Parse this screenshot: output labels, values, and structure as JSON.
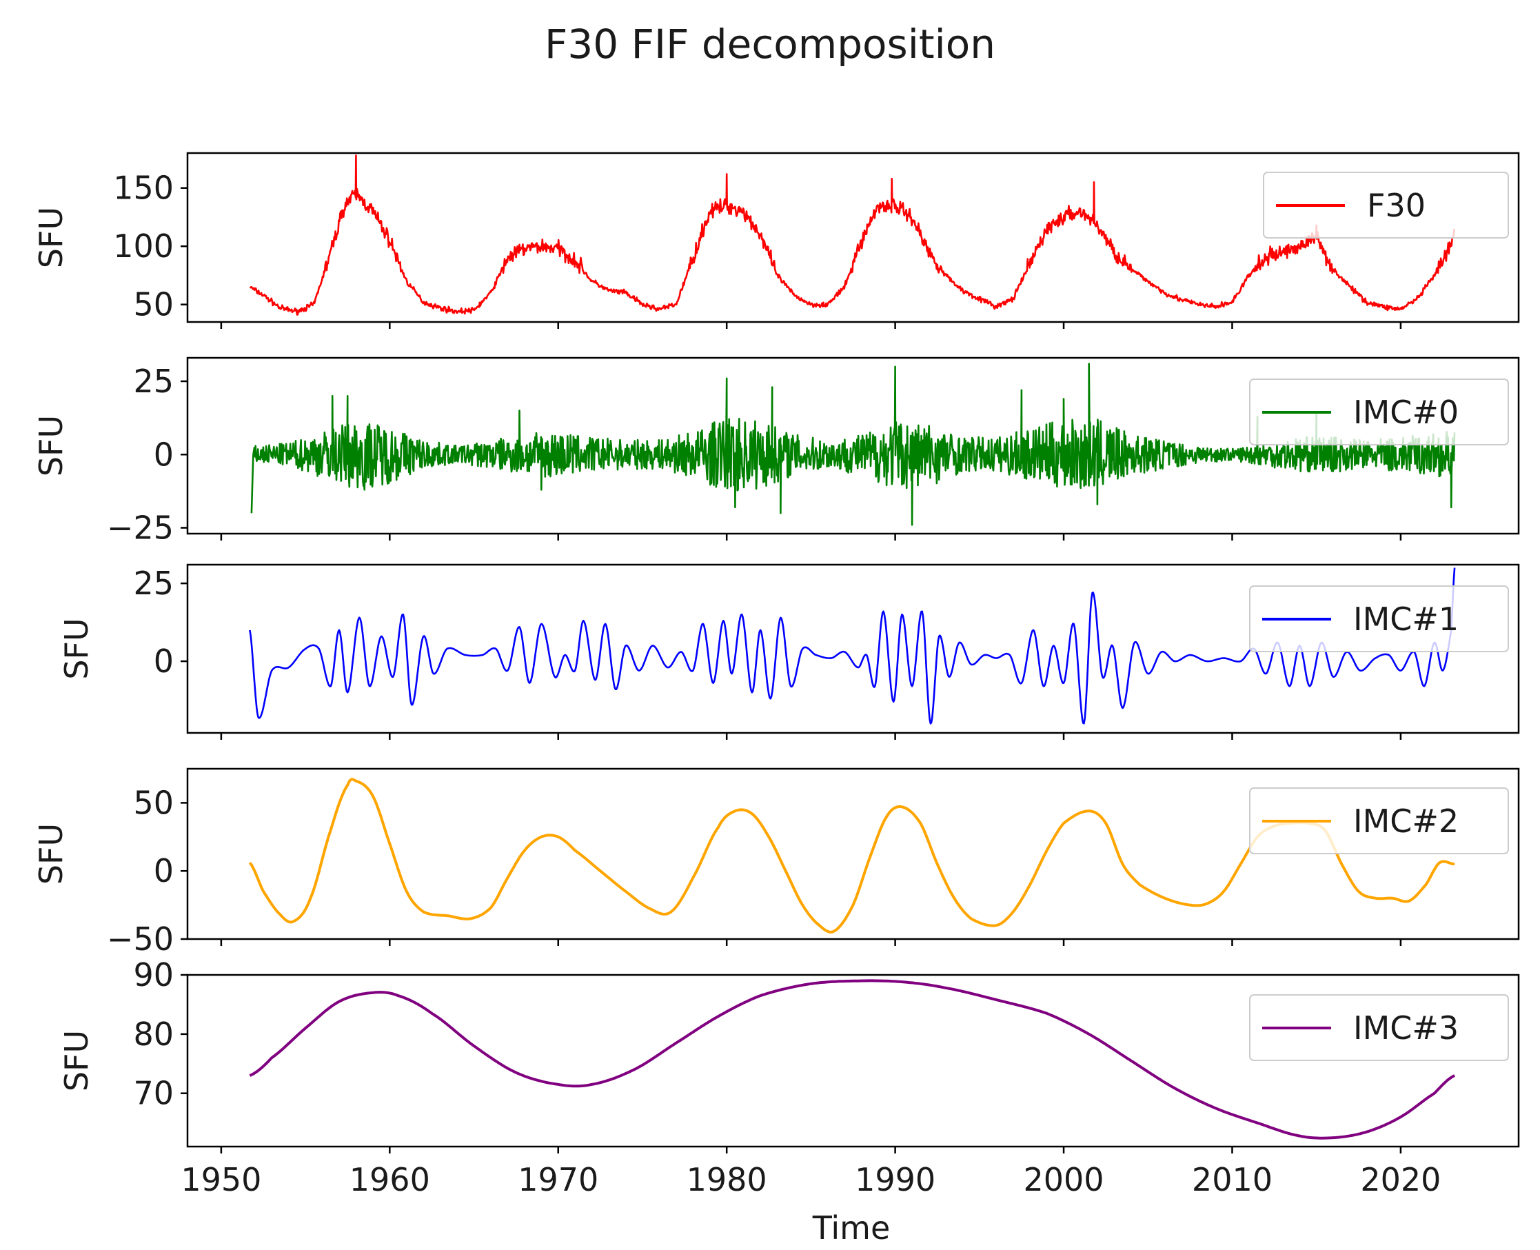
{
  "chart_data": {
    "type": "line",
    "title": "F30 FIF decomposition",
    "xlabel": "Time",
    "x_ticks": [
      "1950",
      "1960",
      "1970",
      "1980",
      "1990",
      "2000",
      "2010",
      "2020"
    ],
    "x_tick_values": [
      1950,
      1960,
      1970,
      1980,
      1990,
      2000,
      2010,
      2020
    ],
    "xlim": [
      1948,
      2027
    ],
    "panels": [
      {
        "id": "f30",
        "legend": "F30",
        "ylabel": "SFU",
        "color": "#ff0000",
        "ylim": [
          35,
          180
        ],
        "y_ticks": [
          "50",
          "100",
          "150"
        ],
        "y_tick_values": [
          50,
          100,
          150
        ],
        "noise": 8,
        "x": [
          1951.7,
          1952.5,
          1953.5,
          1954.5,
          1955.5,
          1956.5,
          1957.3,
          1958.0,
          1959.0,
          1960.0,
          1961.0,
          1962.0,
          1963.0,
          1964.0,
          1965.0,
          1966.0,
          1967.0,
          1968.0,
          1969.0,
          1970.0,
          1971.0,
          1972.0,
          1973.0,
          1974.0,
          1975.0,
          1976.0,
          1977.0,
          1978.0,
          1979.0,
          1980.0,
          1981.0,
          1982.0,
          1983.0,
          1984.0,
          1985.0,
          1986.0,
          1987.0,
          1988.0,
          1989.0,
          1990.0,
          1991.0,
          1992.0,
          1993.0,
          1994.0,
          1995.0,
          1996.0,
          1997.0,
          1998.0,
          1999.0,
          2000.0,
          2001.0,
          2002.0,
          2003.0,
          2004.0,
          2005.0,
          2006.0,
          2007.0,
          2008.0,
          2009.0,
          2010.0,
          2011.0,
          2012.0,
          2013.0,
          2014.0,
          2015.0,
          2016.0,
          2017.0,
          2018.0,
          2019.0,
          2020.0,
          2021.0,
          2022.0,
          2022.8,
          2023.2
        ],
        "values": [
          65,
          58,
          47,
          44,
          50,
          95,
          135,
          145,
          130,
          105,
          70,
          52,
          47,
          44,
          45,
          60,
          90,
          98,
          100,
          98,
          88,
          70,
          62,
          60,
          50,
          46,
          50,
          90,
          130,
          135,
          130,
          110,
          75,
          58,
          50,
          50,
          65,
          105,
          135,
          135,
          125,
          95,
          75,
          62,
          55,
          48,
          55,
          85,
          115,
          125,
          130,
          118,
          95,
          80,
          70,
          60,
          54,
          50,
          48,
          52,
          75,
          90,
          95,
          100,
          108,
          80,
          65,
          52,
          48,
          46,
          55,
          75,
          95,
          110
        ],
        "spikes": [
          [
            1958.0,
            178
          ],
          [
            1980.0,
            162
          ],
          [
            1989.8,
            158
          ],
          [
            2001.8,
            155
          ],
          [
            2015.0,
            118
          ]
        ]
      },
      {
        "id": "imc0",
        "legend": "IMC#0",
        "ylabel": "SFU",
        "color": "#008000",
        "ylim": [
          -27,
          33
        ],
        "y_ticks": [
          "25",
          "0",
          "−25"
        ],
        "y_tick_values": [
          25,
          0,
          -25
        ],
        "x": [
          1952,
          1954,
          1956,
          1958,
          1960,
          1962,
          1964,
          1966,
          1968,
          1970,
          1972,
          1974,
          1976,
          1978,
          1980,
          1982,
          1984,
          1986,
          1988,
          1990,
          1992,
          1994,
          1996,
          1998,
          2000,
          2002,
          2004,
          2006,
          2008,
          2010,
          2012,
          2014,
          2016,
          2018,
          2020,
          2023
        ],
        "envelope": [
          3,
          4,
          8,
          12,
          10,
          5,
          3,
          5,
          7,
          8,
          6,
          5,
          5,
          8,
          13,
          12,
          7,
          5,
          7,
          12,
          11,
          6,
          6,
          9,
          12,
          12,
          7,
          5,
          3,
          2,
          4,
          6,
          6,
          5,
          6,
          8
        ],
        "spikes": [
          [
            1951.8,
            -20
          ],
          [
            1956.6,
            20
          ],
          [
            1957.5,
            20
          ],
          [
            1958.5,
            -12
          ],
          [
            1967.7,
            15
          ],
          [
            1969.0,
            -12
          ],
          [
            1980.0,
            26
          ],
          [
            1980.5,
            -18
          ],
          [
            1982.7,
            23
          ],
          [
            1983.2,
            -20
          ],
          [
            1990.0,
            30
          ],
          [
            1991.0,
            -24
          ],
          [
            1997.5,
            22
          ],
          [
            2000.0,
            19
          ],
          [
            2001.5,
            31
          ],
          [
            2002.0,
            -17
          ],
          [
            2011.5,
            13
          ],
          [
            2015.0,
            14
          ],
          [
            2023.0,
            -18
          ]
        ]
      },
      {
        "id": "imc1",
        "legend": "IMC#1",
        "ylabel": "SFU",
        "color": "#0000ff",
        "ylim": [
          -23,
          31
        ],
        "y_ticks": [
          "25",
          "0"
        ],
        "y_tick_values": [
          25,
          0
        ],
        "x": [
          1951.7,
          1952.2,
          1953.0,
          1954.0,
          1955.0,
          1955.8,
          1956.5,
          1957.0,
          1957.5,
          1958.2,
          1958.8,
          1959.5,
          1960.2,
          1960.8,
          1961.3,
          1962.0,
          1962.6,
          1963.4,
          1964.5,
          1965.5,
          1966.3,
          1967.0,
          1967.7,
          1968.3,
          1969.0,
          1969.8,
          1970.4,
          1971.0,
          1971.5,
          1972.2,
          1972.8,
          1973.4,
          1974.0,
          1974.8,
          1975.6,
          1976.5,
          1977.3,
          1978.0,
          1978.6,
          1979.2,
          1979.8,
          1980.3,
          1980.9,
          1981.5,
          1982.0,
          1982.6,
          1983.2,
          1983.8,
          1984.5,
          1985.3,
          1986.2,
          1987.0,
          1987.8,
          1988.3,
          1988.8,
          1989.3,
          1989.9,
          1990.4,
          1991.0,
          1991.6,
          1992.1,
          1992.6,
          1993.2,
          1993.8,
          1994.5,
          1995.3,
          1996.0,
          1996.8,
          1997.5,
          1998.2,
          1998.8,
          1999.4,
          2000.0,
          2000.6,
          2001.2,
          2001.7,
          2002.3,
          2002.9,
          2003.5,
          2004.2,
          2005.0,
          2005.8,
          2006.6,
          2007.5,
          2008.5,
          2009.5,
          2010.5,
          2011.3,
          2012.0,
          2012.7,
          2013.4,
          2014.0,
          2014.6,
          2015.3,
          2016.0,
          2016.8,
          2017.6,
          2018.5,
          2019.3,
          2020.0,
          2020.8,
          2021.4,
          2022.0,
          2022.5,
          2023.0,
          2023.2
        ],
        "values": [
          10,
          -18,
          -3,
          -2,
          4,
          4,
          -8,
          10,
          -10,
          14,
          -8,
          8,
          -5,
          15,
          -14,
          8,
          -4,
          4,
          2,
          2,
          4,
          -3,
          11,
          -7,
          12,
          -5,
          2,
          -3,
          13,
          -6,
          12,
          -9,
          5,
          -3,
          5,
          -2,
          3,
          -3,
          12,
          -7,
          13,
          -4,
          15,
          -10,
          10,
          -12,
          14,
          -8,
          4,
          2,
          1,
          3,
          -2,
          2,
          -8,
          16,
          -13,
          15,
          -8,
          16,
          -20,
          8,
          -5,
          6,
          -1,
          2,
          1,
          2,
          -7,
          10,
          -8,
          5,
          -7,
          12,
          -20,
          22,
          -5,
          5,
          -15,
          6,
          -4,
          3,
          0,
          2,
          0,
          1,
          0,
          4,
          -4,
          6,
          -8,
          5,
          -8,
          6,
          -5,
          3,
          -3,
          1,
          2,
          -3,
          3,
          -8,
          6,
          -3,
          10,
          30
        ]
      },
      {
        "id": "imc2",
        "legend": "IMC#2",
        "ylabel": "SFU",
        "color": "#ffa500",
        "ylim": [
          -50,
          75
        ],
        "y_ticks": [
          "50",
          "0",
          "−50"
        ],
        "y_tick_values": [
          50,
          0,
          -50
        ],
        "x": [
          1951.7,
          1952.5,
          1953.5,
          1954.3,
          1955.3,
          1956.5,
          1957.5,
          1958.0,
          1959.0,
          1960.0,
          1961.0,
          1962.0,
          1963.5,
          1964.8,
          1966.0,
          1967.0,
          1968.0,
          1969.0,
          1970.0,
          1971.0,
          1972.5,
          1974.0,
          1975.5,
          1976.7,
          1978.0,
          1979.5,
          1980.5,
          1981.5,
          1982.5,
          1983.5,
          1984.5,
          1985.5,
          1986.4,
          1987.5,
          1988.5,
          1989.5,
          1990.4,
          1991.5,
          1992.5,
          1993.5,
          1994.5,
          1996.0,
          1997.0,
          1998.0,
          1999.0,
          2000.0,
          2001.5,
          2002.5,
          2003.5,
          2004.5,
          2006.0,
          2007.5,
          2008.5,
          2009.5,
          2010.5,
          2011.5,
          2012.5,
          2013.5,
          2014.5,
          2015.5,
          2016.5,
          2017.5,
          2018.5,
          2019.5,
          2020.5,
          2021.5,
          2022.3,
          2023.2
        ],
        "values": [
          6,
          -15,
          -32,
          -37,
          -20,
          30,
          63,
          66,
          55,
          20,
          -15,
          -30,
          -33,
          -35,
          -27,
          -5,
          15,
          25,
          25,
          15,
          0,
          -15,
          -28,
          -30,
          -5,
          32,
          44,
          42,
          25,
          0,
          -25,
          -40,
          -44,
          -25,
          10,
          40,
          47,
          35,
          5,
          -20,
          -35,
          -40,
          -30,
          -10,
          15,
          35,
          44,
          35,
          5,
          -10,
          -20,
          -25,
          -24,
          -15,
          5,
          25,
          33,
          35,
          35,
          30,
          5,
          -15,
          -20,
          -20,
          -22,
          -10,
          6,
          5
        ]
      },
      {
        "id": "imc3",
        "legend": "IMC#3",
        "ylabel": "SFU",
        "color": "#800080",
        "ylim": [
          61,
          90
        ],
        "y_ticks": [
          "90",
          "80",
          "70"
        ],
        "y_tick_values": [
          90,
          80,
          70
        ],
        "x": [
          1951.7,
          1953.0,
          1955.0,
          1957.0,
          1959.0,
          1960.5,
          1962.5,
          1965.0,
          1967.5,
          1970.0,
          1972.0,
          1974.5,
          1977.0,
          1979.5,
          1982.0,
          1985.0,
          1988.0,
          1990.5,
          1993.0,
          1996.0,
          1999.0,
          2001.5,
          2004.0,
          2006.5,
          2009.0,
          2011.5,
          2014.0,
          2016.0,
          2018.0,
          2020.0,
          2022.0,
          2023.2
        ],
        "values": [
          73,
          76,
          81,
          85.5,
          87,
          86.5,
          83.5,
          78,
          73.5,
          71.5,
          71.5,
          74,
          78.5,
          83,
          86.5,
          88.5,
          89,
          88.8,
          87.8,
          85.8,
          83.5,
          80,
          75.5,
          71,
          67.5,
          65,
          62.8,
          62.5,
          63.5,
          66,
          70,
          73
        ]
      }
    ]
  }
}
